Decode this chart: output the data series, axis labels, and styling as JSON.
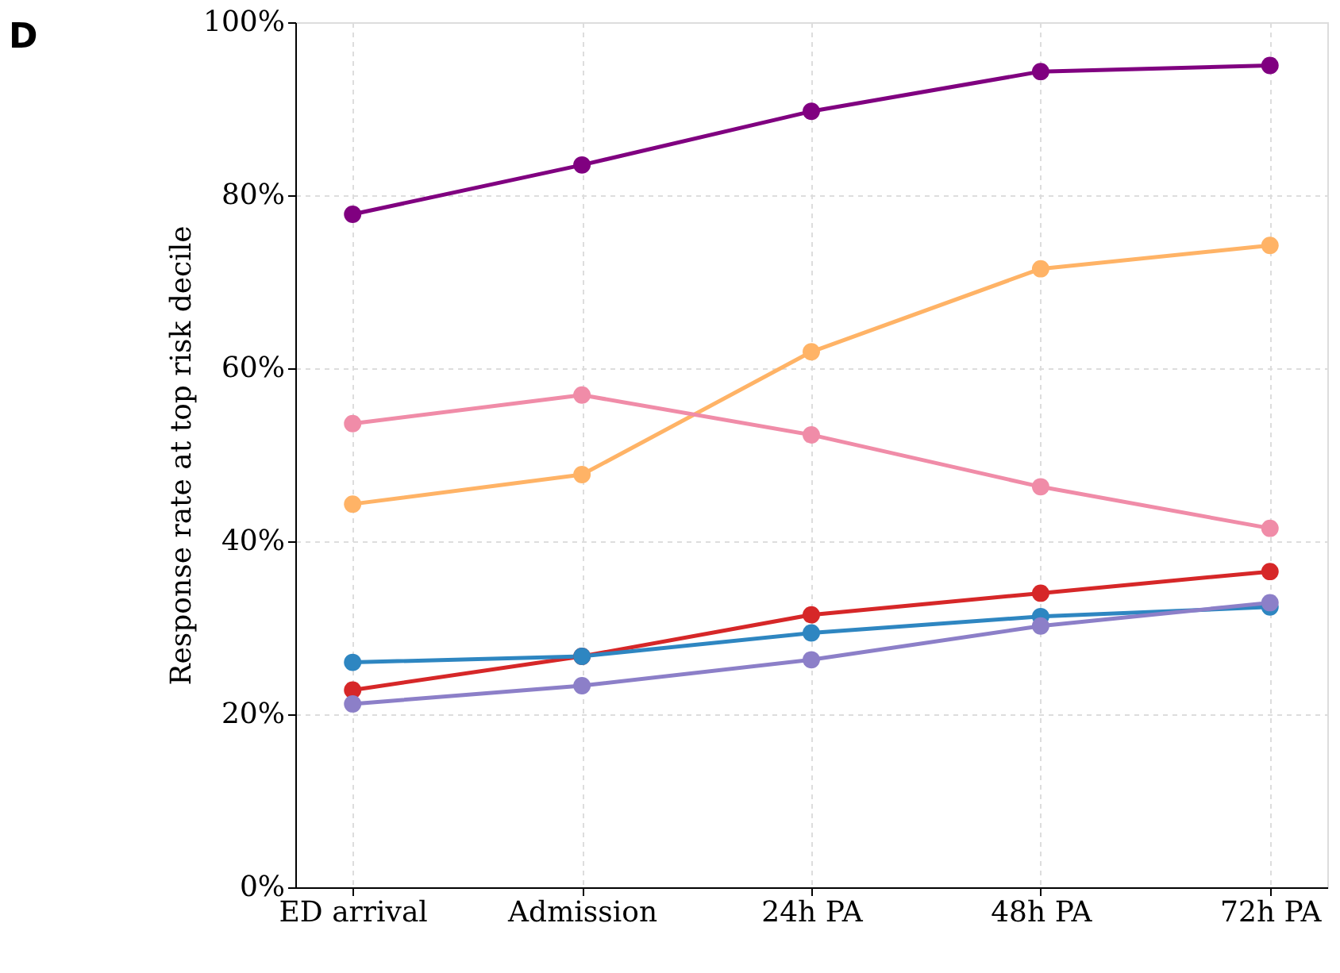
{
  "chart_data": {
    "type": "line",
    "title": "D",
    "ylabel": "Response rate at top risk decile",
    "categories": [
      "ED arrival",
      "Admission",
      "24h PA",
      "48h PA",
      "72h PA"
    ],
    "series": [
      {
        "color": "#800080",
        "values": [
          77.8,
          83.5,
          89.7,
          94.3,
          95.0
        ]
      },
      {
        "color": "#ffb366",
        "values": [
          44.3,
          47.7,
          61.9,
          71.5,
          74.2
        ]
      },
      {
        "color": "#f08ca8",
        "values": [
          53.6,
          56.9,
          52.3,
          46.3,
          41.5
        ]
      },
      {
        "color": "#d62728",
        "values": [
          22.8,
          26.7,
          31.5,
          34.0,
          36.5
        ]
      },
      {
        "color": "#2e86c1",
        "values": [
          26.0,
          26.7,
          29.4,
          31.3,
          32.4
        ]
      },
      {
        "color": "#8c7fc8",
        "values": [
          21.2,
          23.3,
          26.3,
          30.2,
          32.9
        ]
      }
    ],
    "ylim": [
      0,
      100
    ],
    "yticks": [
      {
        "value": 0,
        "label": "0%"
      },
      {
        "value": 20,
        "label": "20%"
      },
      {
        "value": 40,
        "label": "40%"
      },
      {
        "value": 60,
        "label": "60%"
      },
      {
        "value": 80,
        "label": "80%"
      },
      {
        "value": 100,
        "label": "100%"
      }
    ],
    "grid": true,
    "marker": "circle",
    "line_style": "solid",
    "legend": false
  }
}
